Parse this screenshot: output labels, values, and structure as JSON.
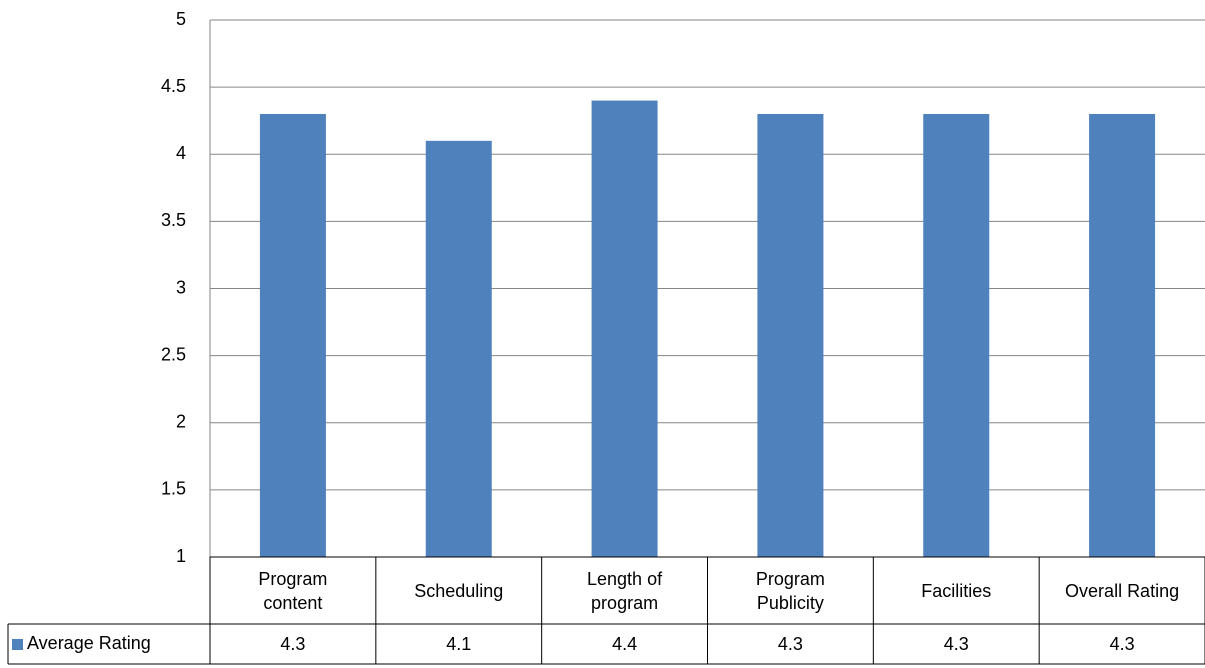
{
  "chart_data": {
    "type": "bar",
    "categories": [
      "Program content",
      "Scheduling",
      "Length of program",
      "Program Publicity",
      "Facilities",
      "Overall Rating"
    ],
    "series": [
      {
        "name": "Average Rating",
        "color": "#4f81bd",
        "values": [
          4.3,
          4.1,
          4.4,
          4.3,
          4.3,
          4.3
        ]
      }
    ],
    "ylim": [
      1,
      5
    ],
    "yticks": [
      1,
      1.5,
      2,
      2.5,
      3,
      3.5,
      4,
      4.5,
      5
    ],
    "grid": true,
    "data_table": true
  }
}
